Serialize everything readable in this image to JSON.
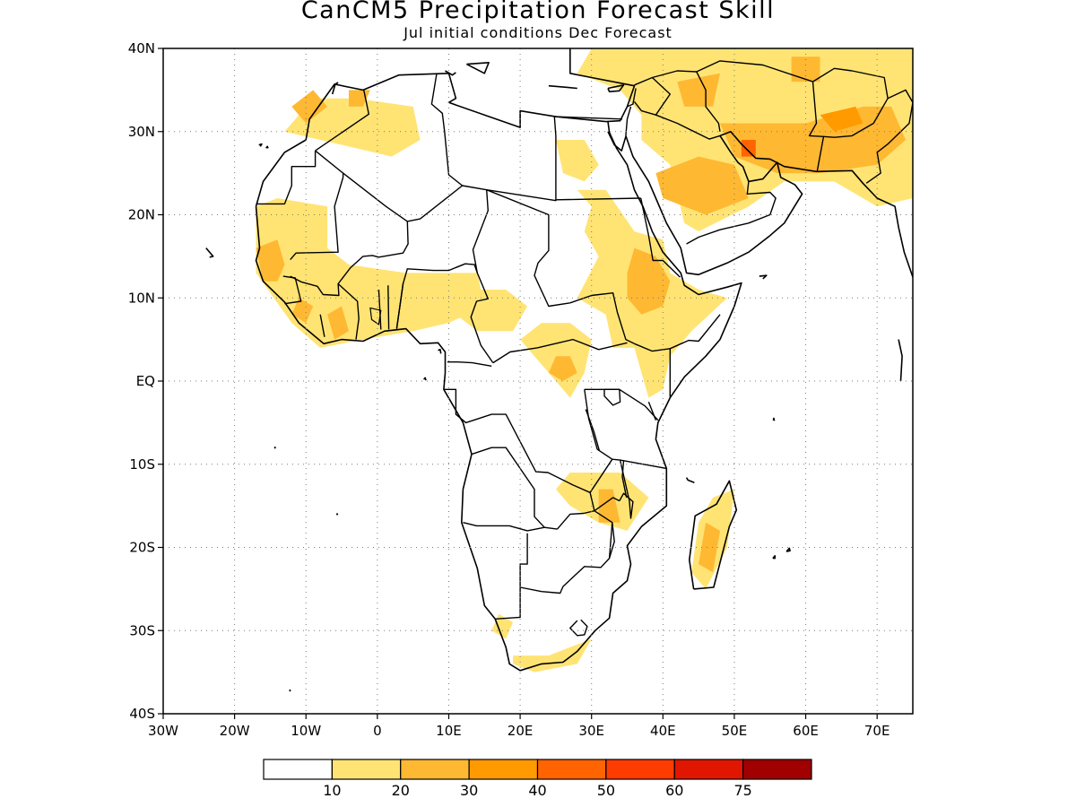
{
  "figure": {
    "title": "CanCM5 Precipitation Forecast Skill",
    "subtitle": "Jul initial conditions   Dec Forecast"
  },
  "axes": {
    "lon_range": [
      -30,
      75
    ],
    "lat_range": [
      -40,
      40
    ],
    "lat_ticks": [
      {
        "value": 40,
        "label": "40N"
      },
      {
        "value": 30,
        "label": "30N"
      },
      {
        "value": 20,
        "label": "20N"
      },
      {
        "value": 10,
        "label": "10N"
      },
      {
        "value": 0,
        "label": "EQ"
      },
      {
        "value": -10,
        "label": "10S"
      },
      {
        "value": -20,
        "label": "20S"
      },
      {
        "value": -30,
        "label": "30S"
      },
      {
        "value": -40,
        "label": "40S"
      }
    ],
    "lon_ticks": [
      {
        "value": -30,
        "label": "30W"
      },
      {
        "value": -20,
        "label": "20W"
      },
      {
        "value": -10,
        "label": "10W"
      },
      {
        "value": 0,
        "label": "0"
      },
      {
        "value": 10,
        "label": "10E"
      },
      {
        "value": 20,
        "label": "20E"
      },
      {
        "value": 30,
        "label": "30E"
      },
      {
        "value": 40,
        "label": "40E"
      },
      {
        "value": 50,
        "label": "50E"
      },
      {
        "value": 60,
        "label": "60E"
      },
      {
        "value": 70,
        "label": "70E"
      }
    ],
    "grid": "dotted"
  },
  "legend": {
    "position": "bottom",
    "colors": [
      "#ffffff",
      "#ffe474",
      "#ffb832",
      "#ff9a00",
      "#ff6400",
      "#ff3c00",
      "#e01600",
      "#a00000"
    ],
    "labels": [
      "10",
      "20",
      "30",
      "40",
      "50",
      "60",
      "75"
    ]
  },
  "chart_data": {
    "type": "heatmap",
    "variable": "precipitation forecast skill",
    "bins": [
      0,
      10,
      20,
      30,
      40,
      50,
      60,
      75
    ],
    "regions": [
      {
        "lon": [
          [
            -13,
            30
          ],
          [
            -9,
            34
          ],
          [
            -3,
            34
          ],
          [
            5,
            33
          ],
          [
            6,
            29
          ],
          [
            2,
            27
          ],
          [
            -3,
            28
          ],
          [
            -8,
            29
          ]
        ],
        "bin": 1
      },
      {
        "lon": [
          [
            -12,
            33
          ],
          [
            -9,
            35
          ],
          [
            -7,
            33
          ],
          [
            -10,
            31
          ]
        ],
        "bin": 2
      },
      {
        "lon": [
          [
            -4,
            35
          ],
          [
            -1,
            35
          ],
          [
            -2,
            33
          ],
          [
            -4,
            33
          ]
        ],
        "bin": 2
      },
      {
        "lon": [
          [
            -17,
            21
          ],
          [
            -14,
            22
          ],
          [
            -7,
            21
          ],
          [
            -7,
            16
          ],
          [
            -4,
            14
          ],
          [
            4,
            13
          ],
          [
            14,
            13
          ],
          [
            15,
            9
          ],
          [
            10,
            7
          ],
          [
            5,
            6
          ],
          [
            -2,
            5
          ],
          [
            -8,
            4
          ],
          [
            -12,
            7
          ],
          [
            -17,
            13
          ],
          [
            -17,
            17
          ]
        ],
        "bin": 1
      },
      {
        "lon": [
          [
            -17,
            16
          ],
          [
            -14,
            17
          ],
          [
            -13,
            14
          ],
          [
            -14,
            12
          ],
          [
            -16,
            12
          ]
        ],
        "bin": 2
      },
      {
        "lon": [
          [
            -11,
            10
          ],
          [
            -9,
            9
          ],
          [
            -10,
            7
          ],
          [
            -12,
            8
          ]
        ],
        "bin": 2
      },
      {
        "lon": [
          [
            -7,
            8
          ],
          [
            -5,
            9
          ],
          [
            -4,
            6
          ],
          [
            -6,
            5
          ]
        ],
        "bin": 2
      },
      {
        "lon": [
          [
            25,
            29
          ],
          [
            29,
            29
          ],
          [
            31,
            26
          ],
          [
            29,
            24
          ],
          [
            26,
            25
          ]
        ],
        "bin": 1
      },
      {
        "lon": [
          [
            28,
            23
          ],
          [
            32,
            23
          ],
          [
            36,
            18
          ],
          [
            40,
            17
          ],
          [
            41,
            13
          ],
          [
            45,
            11
          ],
          [
            49,
            10
          ],
          [
            44,
            6
          ],
          [
            41,
            3
          ],
          [
            40,
            -1
          ],
          [
            38,
            -2
          ],
          [
            36,
            4
          ],
          [
            33,
            4
          ],
          [
            32,
            8
          ],
          [
            28,
            10
          ],
          [
            31,
            15
          ],
          [
            29,
            18
          ],
          [
            30,
            21
          ]
        ],
        "bin": 1
      },
      {
        "lon": [
          [
            36,
            16
          ],
          [
            39,
            15
          ],
          [
            41,
            12
          ],
          [
            40,
            9
          ],
          [
            37,
            8
          ],
          [
            35,
            10
          ],
          [
            35,
            13
          ]
        ],
        "bin": 2
      },
      {
        "lon": [
          [
            23,
            7
          ],
          [
            27,
            7
          ],
          [
            30,
            5
          ],
          [
            29,
            1
          ],
          [
            27,
            -2
          ],
          [
            25,
            0
          ],
          [
            22,
            3
          ],
          [
            20,
            5
          ]
        ],
        "bin": 1
      },
      {
        "lon": [
          [
            25,
            3
          ],
          [
            27,
            3
          ],
          [
            28,
            1
          ],
          [
            26,
            0
          ],
          [
            24,
            1
          ]
        ],
        "bin": 2
      },
      {
        "lon": [
          [
            12,
            11
          ],
          [
            18,
            11
          ],
          [
            21,
            9
          ],
          [
            19,
            6
          ],
          [
            14,
            6
          ],
          [
            11,
            8
          ]
        ],
        "bin": 1
      },
      {
        "lon": [
          [
            27,
            -11
          ],
          [
            34,
            -11
          ],
          [
            38,
            -14
          ],
          [
            35,
            -18
          ],
          [
            31,
            -17
          ],
          [
            27,
            -15
          ],
          [
            25,
            -13
          ]
        ],
        "bin": 1
      },
      {
        "lon": [
          [
            31,
            -13
          ],
          [
            33,
            -13
          ],
          [
            34,
            -17
          ],
          [
            31,
            -17
          ]
        ],
        "bin": 2
      },
      {
        "lon": [
          [
            47,
            -14
          ],
          [
            50,
            -13
          ],
          [
            49,
            -20
          ],
          [
            46,
            -25
          ],
          [
            44,
            -23
          ],
          [
            45,
            -17
          ]
        ],
        "bin": 1
      },
      {
        "lon": [
          [
            46,
            -17
          ],
          [
            48,
            -18
          ],
          [
            47,
            -23
          ],
          [
            45,
            -22
          ]
        ],
        "bin": 2
      },
      {
        "lon": [
          [
            17,
            -28
          ],
          [
            19,
            -29
          ],
          [
            18,
            -31
          ],
          [
            16,
            -30
          ]
        ],
        "bin": 1
      },
      {
        "lon": [
          [
            19,
            -33
          ],
          [
            24,
            -33
          ],
          [
            30,
            -31
          ],
          [
            28,
            -34
          ],
          [
            22,
            -35
          ],
          [
            19,
            -34
          ]
        ],
        "bin": 1
      },
      {
        "lon": [
          [
            35,
            40
          ],
          [
            75,
            40
          ],
          [
            75,
            22
          ],
          [
            70,
            21
          ],
          [
            64,
            24
          ],
          [
            57,
            24
          ],
          [
            52,
            21
          ],
          [
            45,
            18
          ],
          [
            43,
            19
          ],
          [
            41,
            26
          ],
          [
            37,
            29
          ],
          [
            37,
            32
          ],
          [
            34,
            35
          ],
          [
            28,
            37
          ],
          [
            30,
            40
          ]
        ],
        "bin": 1
      },
      {
        "lon": [
          [
            39,
            25
          ],
          [
            45,
            27
          ],
          [
            50,
            26
          ],
          [
            52,
            22
          ],
          [
            46,
            20
          ],
          [
            40,
            22
          ]
        ],
        "bin": 2
      },
      {
        "lon": [
          [
            48,
            31
          ],
          [
            60,
            31
          ],
          [
            68,
            33
          ],
          [
            72,
            33
          ],
          [
            74,
            29
          ],
          [
            70,
            26
          ],
          [
            62,
            25
          ],
          [
            56,
            25
          ],
          [
            50,
            27
          ]
        ],
        "bin": 2
      },
      {
        "lon": [
          [
            62,
            32
          ],
          [
            67,
            33
          ],
          [
            68,
            31
          ],
          [
            64,
            30
          ]
        ],
        "bin": 3
      },
      {
        "lon": [
          [
            51,
            29
          ],
          [
            53,
            29
          ],
          [
            53,
            27
          ],
          [
            51,
            27
          ]
        ],
        "bin": 4
      },
      {
        "lon": [
          [
            42,
            36
          ],
          [
            48,
            37
          ],
          [
            47,
            33
          ],
          [
            43,
            33
          ]
        ],
        "bin": 2
      },
      {
        "lon": [
          [
            58,
            39
          ],
          [
            62,
            39
          ],
          [
            62,
            36
          ],
          [
            58,
            36
          ]
        ],
        "bin": 2
      }
    ]
  }
}
